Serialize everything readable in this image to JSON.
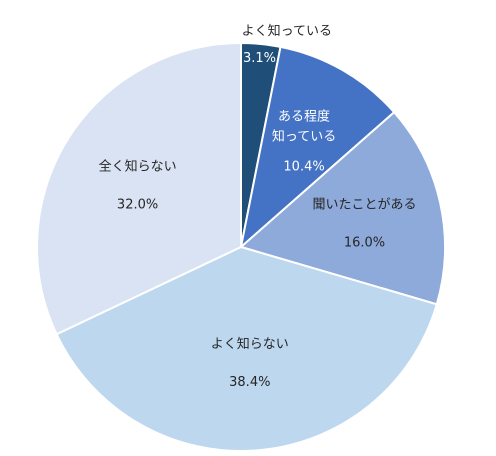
{
  "chart_data": {
    "type": "pie",
    "title": "",
    "start_angle_deg": 0,
    "direction": "clockwise",
    "slices": [
      {
        "label_lines": [
          "よく知っている"
        ],
        "value": 3.1,
        "value_label": "3.1%",
        "color": "#1f4e79",
        "label_placement": "outside-top",
        "value_text_color": "#ffffff"
      },
      {
        "label_lines": [
          "ある程度",
          "知っている"
        ],
        "value": 10.4,
        "value_label": "10.4%",
        "color": "#4472c4",
        "label_placement": "inside",
        "text_color": "#ffffff"
      },
      {
        "label_lines": [
          "聞いたことがある"
        ],
        "value": 16.0,
        "value_label": "16.0%",
        "color": "#8eaadb",
        "label_placement": "inside",
        "text_color": "#262626"
      },
      {
        "label_lines": [
          "よく知らない"
        ],
        "value": 38.4,
        "value_label": "38.4%",
        "color": "#bdd7ee",
        "label_placement": "inside",
        "text_color": "#262626"
      },
      {
        "label_lines": [
          "全く知らない"
        ],
        "value": 32.0,
        "value_label": "32.0%",
        "color": "#dae3f3",
        "label_placement": "inside",
        "text_color": "#262626"
      }
    ],
    "legend": "none",
    "border_color": "#ffffff"
  }
}
